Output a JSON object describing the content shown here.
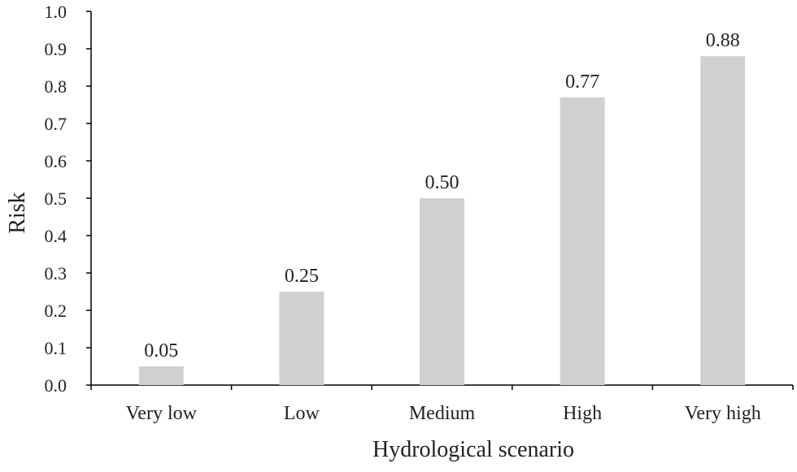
{
  "chart_data": {
    "type": "bar",
    "categories": [
      "Very low",
      "Low",
      "Medium",
      "High",
      "Very high"
    ],
    "values": [
      0.05,
      0.25,
      0.5,
      0.77,
      0.88
    ],
    "data_labels": [
      "0.05",
      "0.25",
      "0.50",
      "0.77",
      "0.88"
    ],
    "xlabel": "Hydrological scenario",
    "ylabel": "Risk",
    "ylim": [
      0,
      1.0
    ],
    "yticks": [
      0.0,
      0.1,
      0.2,
      0.3,
      0.4,
      0.5,
      0.6,
      0.7,
      0.8,
      0.9,
      1.0
    ],
    "ytick_labels": [
      "0.0",
      "0.1",
      "0.2",
      "0.3",
      "0.4",
      "0.5",
      "0.6",
      "0.7",
      "0.8",
      "0.9",
      "1.0"
    ],
    "grid": false,
    "legend": "none",
    "colors": {
      "bar": "#d0d0d0",
      "axis": "#000000",
      "text": "#222222"
    }
  }
}
